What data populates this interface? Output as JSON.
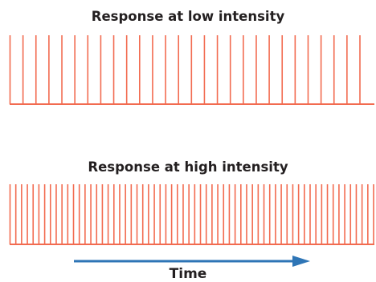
{
  "panels": [
    {
      "title": "Response at low intensity",
      "spike_count": 28,
      "color": "#f26b50"
    },
    {
      "title": "Response at high intensity",
      "spike_count": 64,
      "color": "#f26b50"
    }
  ],
  "time_axis": {
    "label": "Time",
    "arrow_color": "#2e75b6"
  }
}
